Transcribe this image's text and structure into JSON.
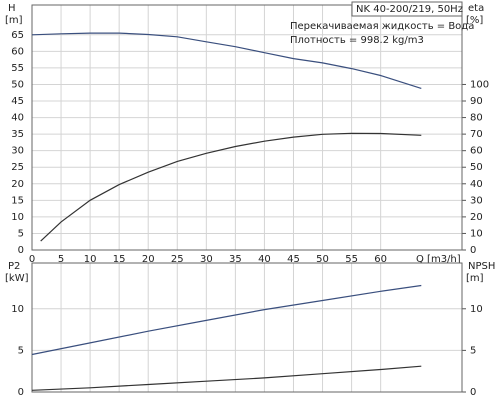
{
  "chart_data": [
    {
      "type": "line",
      "annotations": [
        "NK 40-200/219, 50Hz",
        "Перекачиваемая жидкость = Вода",
        "Плотность = 998.2 kg/m3"
      ],
      "ylabel": "H",
      "yunit": "[m]",
      "y2label": "eta",
      "y2unit": "[%]",
      "xlabel": "Q [m3/h]",
      "xlim": [
        0,
        74
      ],
      "xticks": [
        0,
        5,
        10,
        15,
        20,
        25,
        30,
        35,
        40,
        45,
        50,
        55,
        60
      ],
      "show_xtick_labels": true,
      "ylim": [
        0,
        74
      ],
      "yticks": [
        0,
        5,
        10,
        15,
        20,
        25,
        30,
        35,
        40,
        45,
        50,
        55,
        60,
        65
      ],
      "y2lim": [
        0,
        148
      ],
      "y2ticks": [
        0,
        10,
        20,
        30,
        40,
        50,
        60,
        70,
        80,
        90,
        100
      ],
      "grid": true,
      "series": [
        {
          "name": "H",
          "color": "#3a4f7e",
          "axis": "y",
          "x": [
            0,
            5,
            10,
            15,
            20,
            25,
            30,
            35,
            40,
            45,
            50,
            55,
            60,
            67
          ],
          "values": [
            65,
            65.3,
            65.5,
            65.5,
            65.1,
            64.4,
            62.9,
            61.4,
            59.6,
            57.8,
            56.5,
            54.8,
            52.7,
            48.8
          ]
        },
        {
          "name": "eta",
          "color": "#333333",
          "axis": "y2",
          "x": [
            1.5,
            5,
            10,
            15,
            20,
            25,
            30,
            35,
            40,
            45,
            50,
            55,
            60,
            67
          ],
          "values": [
            5.4,
            17,
            30,
            39.5,
            47,
            53.5,
            58.4,
            62.5,
            65.7,
            68.2,
            69.9,
            70.5,
            70.4,
            69.3
          ]
        }
      ]
    },
    {
      "type": "line",
      "ylabel": "P2",
      "yunit": "[kW]",
      "y2label": "NPSH",
      "y2unit": "[m]",
      "xlim": [
        0,
        74
      ],
      "xticks": [
        0,
        5,
        10,
        15,
        20,
        25,
        30,
        35,
        40,
        45,
        50,
        55,
        60
      ],
      "show_xtick_labels": false,
      "ylim": [
        0,
        15.5
      ],
      "yticks": [
        0,
        5,
        10
      ],
      "y2lim": [
        0,
        15.5
      ],
      "y2ticks": [
        0,
        5,
        10
      ],
      "grid": true,
      "series": [
        {
          "name": "P2",
          "color": "#3a4f7e",
          "axis": "y",
          "x": [
            0,
            10,
            20,
            30,
            40,
            50,
            60,
            67
          ],
          "values": [
            4.5,
            5.9,
            7.3,
            8.6,
            9.9,
            11.0,
            12.1,
            12.8
          ]
        },
        {
          "name": "NPSH",
          "color": "#333333",
          "axis": "y2",
          "x": [
            0,
            10,
            20,
            30,
            40,
            50,
            60,
            67
          ],
          "values": [
            0.2,
            0.5,
            0.9,
            1.3,
            1.7,
            2.2,
            2.7,
            3.1
          ]
        }
      ]
    }
  ]
}
